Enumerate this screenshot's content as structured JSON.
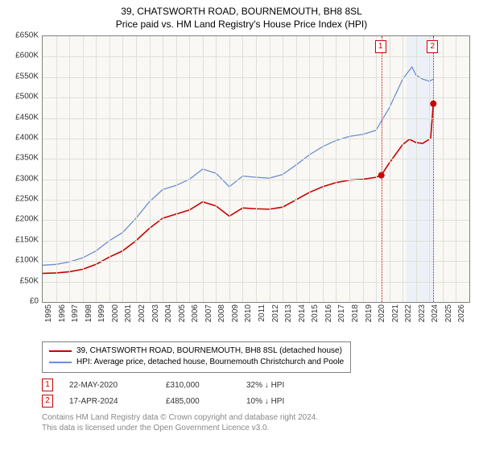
{
  "title_line1": "39, CHATSWORTH ROAD, BOURNEMOUTH, BH8 8SL",
  "title_line2": "Price paid vs. HM Land Registry's House Price Index (HPI)",
  "chart": {
    "type": "line",
    "background_color": "#f9f8f4",
    "grid_color": "#e0dfd9",
    "border_color": "#808080",
    "xlim": [
      1995,
      2027
    ],
    "ylim": [
      0,
      650000
    ],
    "ytick_step": 50000,
    "yticks": [
      "£0",
      "£50K",
      "£100K",
      "£150K",
      "£200K",
      "£250K",
      "£300K",
      "£350K",
      "£400K",
      "£450K",
      "£500K",
      "£550K",
      "£600K",
      "£650K"
    ],
    "xticks": [
      1995,
      1996,
      1997,
      1998,
      1999,
      2000,
      2001,
      2002,
      2003,
      2004,
      2005,
      2006,
      2007,
      2008,
      2009,
      2010,
      2011,
      2012,
      2013,
      2014,
      2015,
      2016,
      2017,
      2018,
      2019,
      2020,
      2021,
      2022,
      2023,
      2024,
      2025,
      2026
    ],
    "highlight_band": {
      "x_from": 2022.3,
      "x_to": 2024.3,
      "color": "#e8eef8"
    },
    "callout_lines": [
      {
        "x": 2020.4
      },
      {
        "x": 2024.3
      }
    ],
    "series": [
      {
        "name": "property",
        "label": "39, CHATSWORTH ROAD, BOURNEMOUTH, BH8 8SL (detached house)",
        "color": "#cc0000",
        "width": 1.6,
        "data": [
          [
            1995.0,
            70000
          ],
          [
            1996.0,
            71000
          ],
          [
            1997.0,
            74000
          ],
          [
            1998.0,
            80000
          ],
          [
            1999.0,
            92000
          ],
          [
            2000.0,
            110000
          ],
          [
            2001.0,
            125000
          ],
          [
            2002.0,
            150000
          ],
          [
            2003.0,
            180000
          ],
          [
            2004.0,
            205000
          ],
          [
            2005.0,
            215000
          ],
          [
            2006.0,
            225000
          ],
          [
            2007.0,
            245000
          ],
          [
            2008.0,
            235000
          ],
          [
            2009.0,
            210000
          ],
          [
            2010.0,
            230000
          ],
          [
            2011.0,
            228000
          ],
          [
            2012.0,
            227000
          ],
          [
            2013.0,
            232000
          ],
          [
            2014.0,
            250000
          ],
          [
            2015.0,
            268000
          ],
          [
            2016.0,
            282000
          ],
          [
            2017.0,
            292000
          ],
          [
            2018.0,
            298000
          ],
          [
            2019.0,
            300000
          ],
          [
            2020.0,
            305000
          ],
          [
            2020.4,
            310000
          ],
          [
            2021.0,
            340000
          ],
          [
            2022.0,
            385000
          ],
          [
            2022.5,
            398000
          ],
          [
            2023.0,
            390000
          ],
          [
            2023.5,
            388000
          ],
          [
            2024.1,
            400000
          ],
          [
            2024.3,
            485000
          ]
        ]
      },
      {
        "name": "hpi",
        "label": "HPI: Average price, detached house, Bournemouth Christchurch and Poole",
        "color": "#6a8fd4",
        "width": 1.3,
        "data": [
          [
            1995.0,
            90000
          ],
          [
            1996.0,
            92000
          ],
          [
            1997.0,
            98000
          ],
          [
            1998.0,
            108000
          ],
          [
            1999.0,
            125000
          ],
          [
            2000.0,
            150000
          ],
          [
            2001.0,
            170000
          ],
          [
            2002.0,
            205000
          ],
          [
            2003.0,
            245000
          ],
          [
            2004.0,
            275000
          ],
          [
            2005.0,
            285000
          ],
          [
            2006.0,
            300000
          ],
          [
            2007.0,
            325000
          ],
          [
            2008.0,
            315000
          ],
          [
            2009.0,
            282000
          ],
          [
            2010.0,
            308000
          ],
          [
            2011.0,
            305000
          ],
          [
            2012.0,
            303000
          ],
          [
            2013.0,
            312000
          ],
          [
            2014.0,
            335000
          ],
          [
            2015.0,
            360000
          ],
          [
            2016.0,
            380000
          ],
          [
            2017.0,
            395000
          ],
          [
            2018.0,
            405000
          ],
          [
            2019.0,
            410000
          ],
          [
            2020.0,
            420000
          ],
          [
            2021.0,
            475000
          ],
          [
            2022.0,
            545000
          ],
          [
            2022.7,
            575000
          ],
          [
            2023.0,
            555000
          ],
          [
            2023.5,
            545000
          ],
          [
            2024.0,
            540000
          ],
          [
            2024.3,
            545000
          ]
        ]
      }
    ],
    "markers": [
      {
        "id": "1",
        "x": 2020.4,
        "y": 310000,
        "box_top": 50
      },
      {
        "id": "2",
        "x": 2024.3,
        "y": 485000,
        "box_top": 50
      }
    ]
  },
  "legend": {
    "rows": [
      {
        "color": "#cc0000",
        "label": "39, CHATSWORTH ROAD, BOURNEMOUTH, BH8 8SL (detached house)"
      },
      {
        "color": "#6a8fd4",
        "label": "HPI: Average price, detached house, Bournemouth Christchurch and Poole"
      }
    ]
  },
  "data_rows": [
    {
      "id": "1",
      "date": "22-MAY-2020",
      "price": "£310,000",
      "change": "32% ↓ HPI"
    },
    {
      "id": "2",
      "date": "17-APR-2024",
      "price": "£485,000",
      "change": "10% ↓ HPI"
    }
  ],
  "footer_line1": "Contains HM Land Registry data © Crown copyright and database right 2024.",
  "footer_line2": "This data is licensed under the Open Government Licence v3.0.",
  "style": {
    "title_fontsize": 12,
    "axis_fontsize": 10,
    "legend_fontsize": 10,
    "footer_color": "#888888"
  }
}
